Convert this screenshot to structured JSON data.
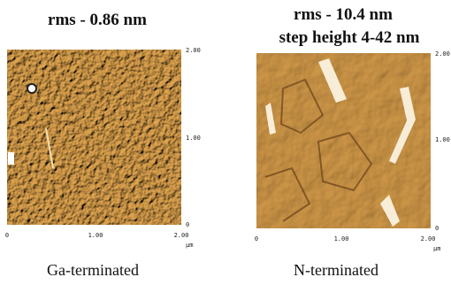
{
  "panels": [
    {
      "title_lines": [
        "rms - 0.86 nm"
      ],
      "y_ticks": [
        "2.00",
        "1.00",
        "0"
      ],
      "x_ticks": [
        "0",
        "1.00",
        "2.00"
      ],
      "unit": "μm",
      "caption": "Ga-terminated"
    },
    {
      "title_lines": [
        "rms - 10.4 nm",
        "step height 4-42 nm"
      ],
      "y_ticks": [
        "2.00",
        "1.00",
        "0"
      ],
      "x_ticks": [
        "0",
        "1.00",
        "2.00"
      ],
      "unit": "μm",
      "caption": "N-terminated"
    }
  ]
}
